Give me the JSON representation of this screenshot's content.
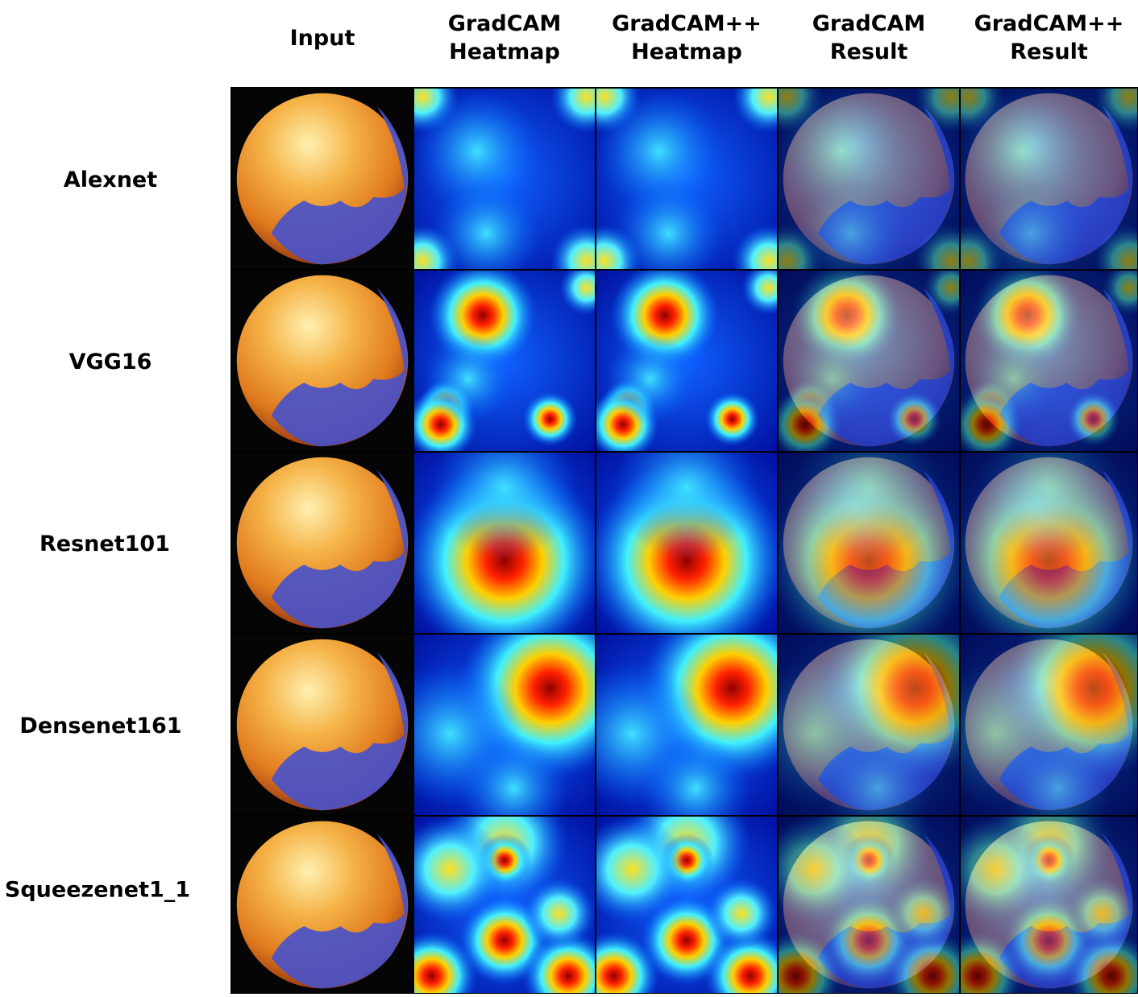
{
  "headers": [
    {
      "lines": [
        "Input"
      ]
    },
    {
      "lines": [
        "GradCAM",
        "Heatmap"
      ]
    },
    {
      "lines": [
        "GradCAM++",
        "Heatmap"
      ]
    },
    {
      "lines": [
        "GradCAM",
        "Result"
      ]
    },
    {
      "lines": [
        "GradCAM++",
        "Result"
      ]
    }
  ],
  "rows": [
    "Alexnet",
    "VGG16",
    "Resnet101",
    "Densenet161",
    "Squeezenet1_1"
  ]
}
